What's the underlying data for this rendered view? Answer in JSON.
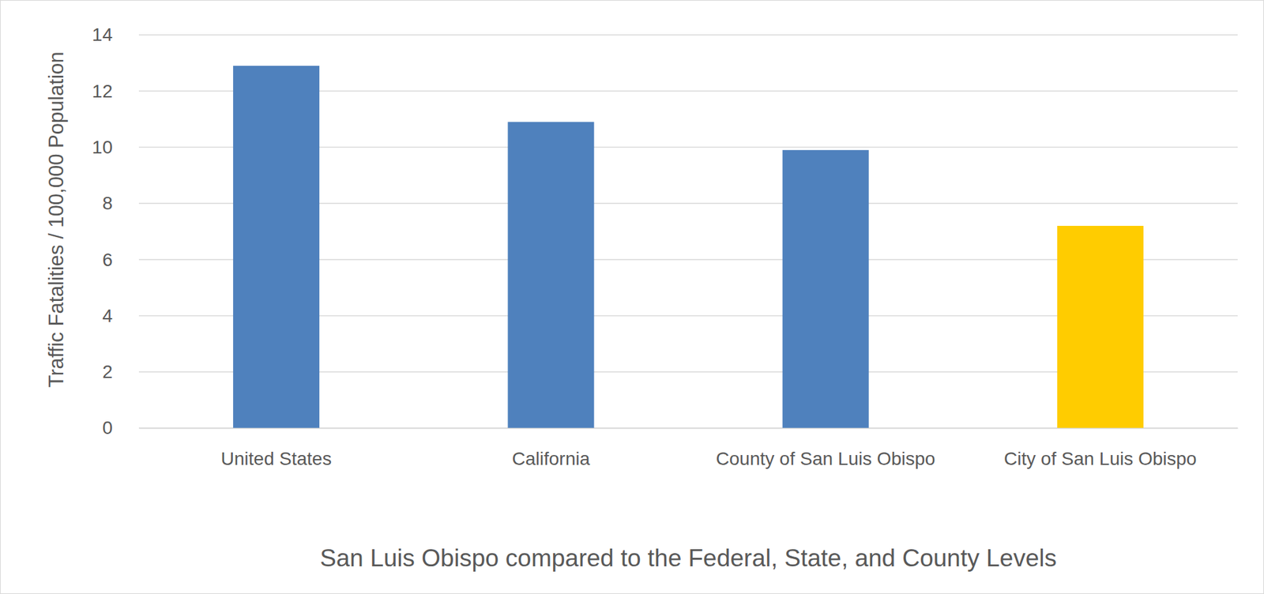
{
  "chart_data": {
    "type": "bar",
    "x_label": "San Luis Obispo compared to the Federal, State, and County Levels",
    "y_label": "Traffic Fatalities / 100,000 Population",
    "categories": [
      "United States",
      "California",
      "County of San Luis Obispo",
      "City of San Luis Obispo"
    ],
    "values": [
      12.9,
      10.9,
      9.9,
      7.2
    ],
    "colors": [
      "#4f81bd",
      "#4f81bd",
      "#4f81bd",
      "#ffcc00"
    ],
    "ylim": [
      0,
      14
    ],
    "yticks": [
      0,
      2,
      4,
      6,
      8,
      10,
      12,
      14
    ],
    "grid": true
  }
}
